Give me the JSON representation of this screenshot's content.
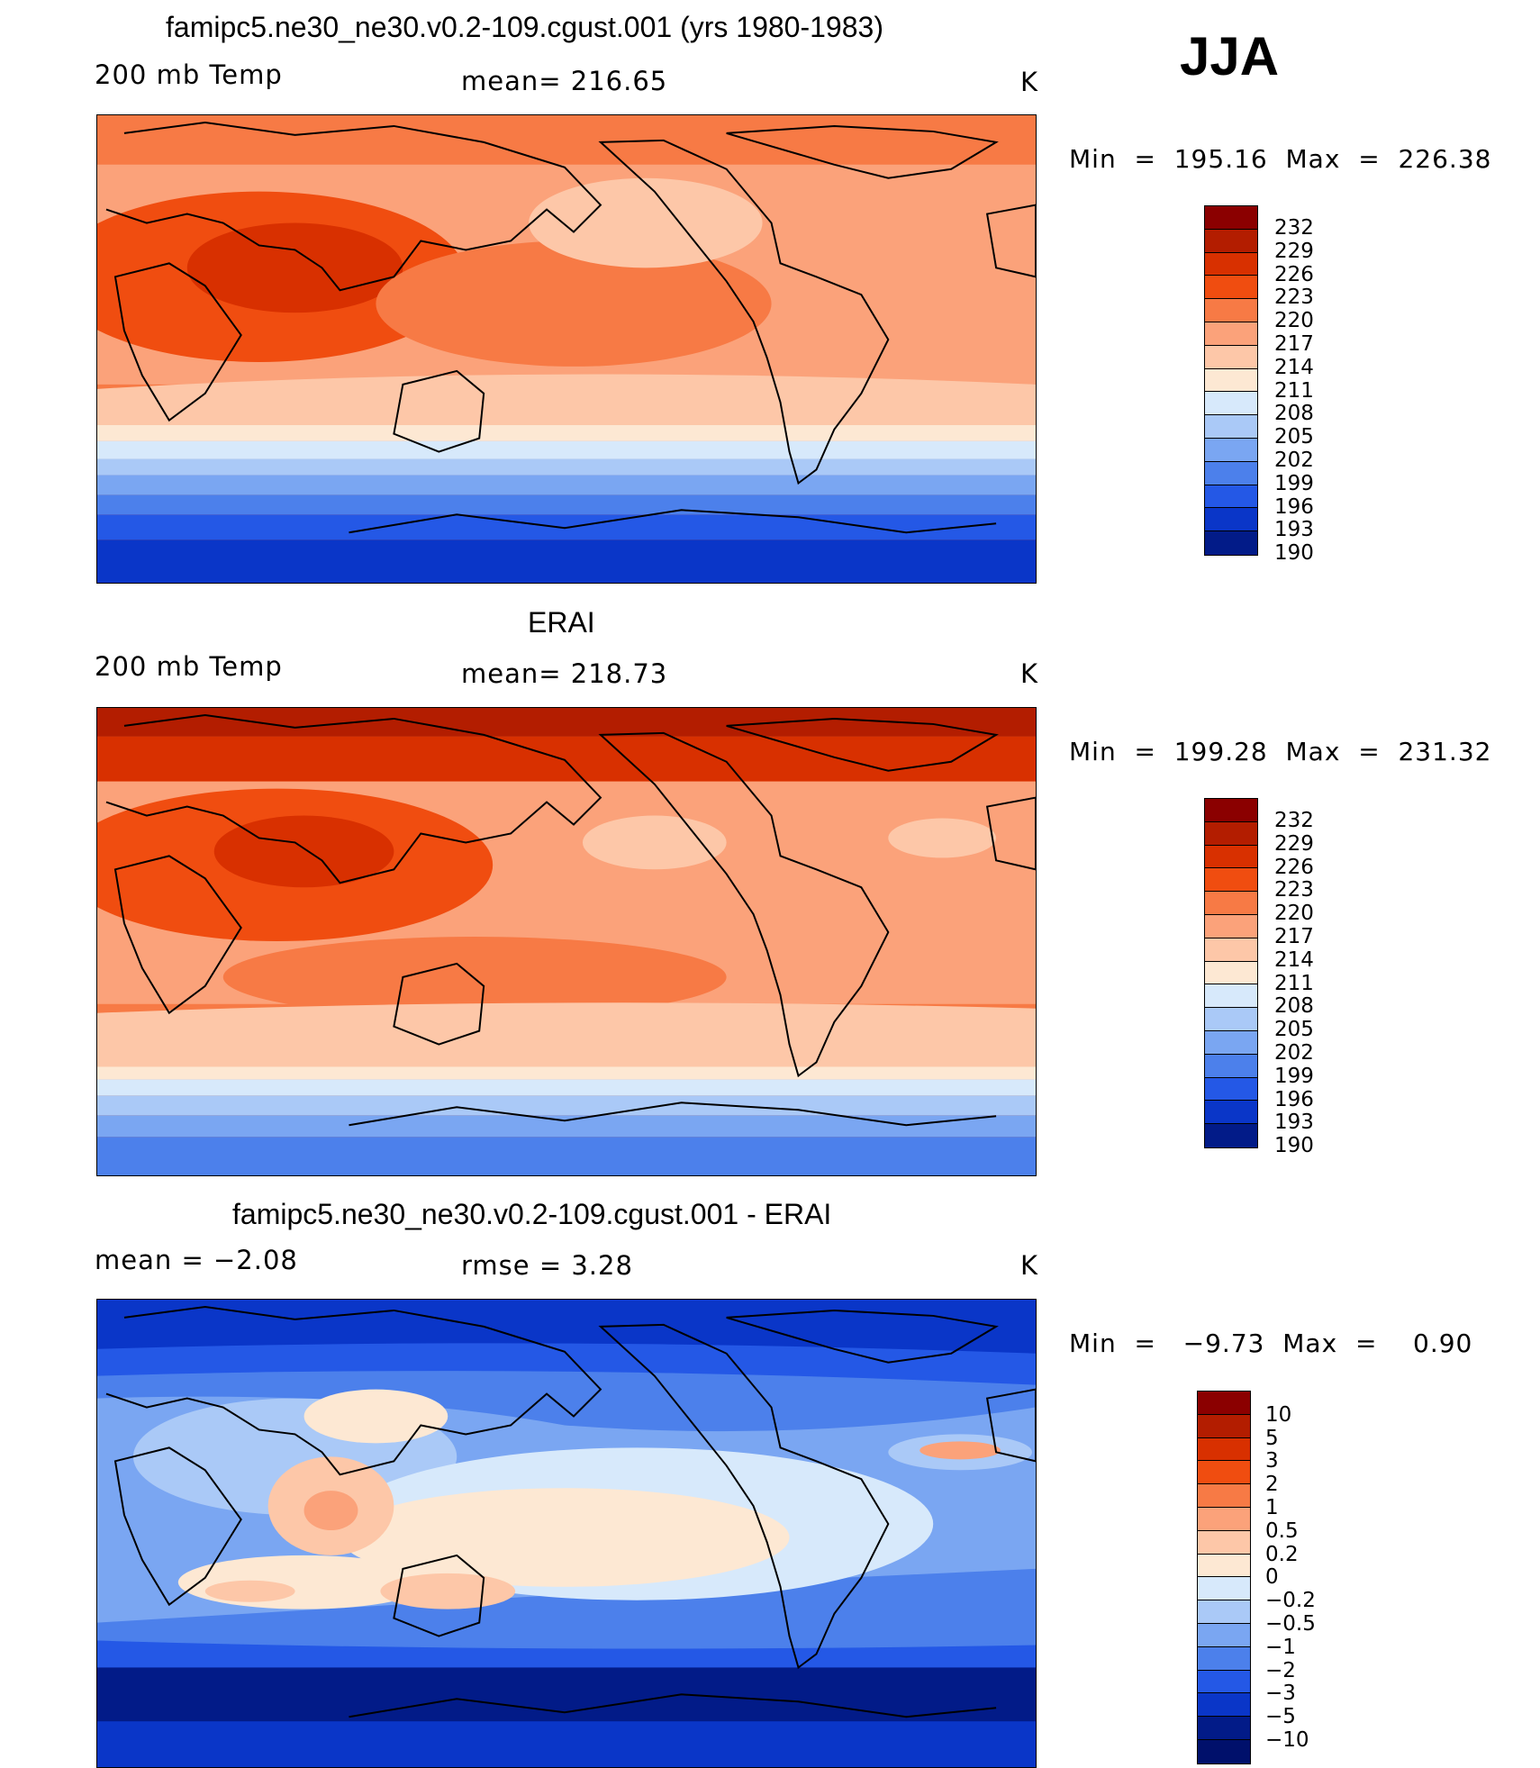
{
  "season": "JJA",
  "panels": [
    {
      "id": "model",
      "title": "famipc5.ne30_ne30.v0.2-109.cgust.001 (yrs 1980-1983)",
      "left_label": "200 mb Temp",
      "center_label": "mean=  216.65",
      "unit": "K",
      "min_max": "Min  =  195.16  Max  =  226.38",
      "colorbar": {
        "labels": [
          "232",
          "229",
          "226",
          "223",
          "220",
          "217",
          "214",
          "211",
          "208",
          "205",
          "202",
          "199",
          "196",
          "193",
          "190"
        ],
        "colors": [
          "#8b0000",
          "#b31d00",
          "#d83000",
          "#f04d10",
          "#f77a45",
          "#fba27a",
          "#fdc7a8",
          "#fde8d3",
          "#d7e9fb",
          "#aac9f7",
          "#7aa6f2",
          "#4c80eb",
          "#2458e6",
          "#0a36c8",
          "#021b88"
        ]
      }
    },
    {
      "id": "obs",
      "title": "ERAI",
      "left_label": "200 mb Temp",
      "center_label": "mean=  218.73",
      "unit": "K",
      "min_max": "Min  =  199.28  Max  =  231.32",
      "colorbar": {
        "labels": [
          "232",
          "229",
          "226",
          "223",
          "220",
          "217",
          "214",
          "211",
          "208",
          "205",
          "202",
          "199",
          "196",
          "193",
          "190"
        ],
        "colors": [
          "#8b0000",
          "#b31d00",
          "#d83000",
          "#f04d10",
          "#f77a45",
          "#fba27a",
          "#fdc7a8",
          "#fde8d3",
          "#d7e9fb",
          "#aac9f7",
          "#7aa6f2",
          "#4c80eb",
          "#2458e6",
          "#0a36c8",
          "#021b88"
        ]
      }
    },
    {
      "id": "diff",
      "title": "famipc5.ne30_ne30.v0.2-109.cgust.001 - ERAI",
      "left_label": "mean =   −2.08",
      "center_label": "rmse =    3.28",
      "unit": "K",
      "min_max": "Min  =   −9.73  Max  =    0.90",
      "colorbar": {
        "labels": [
          "10",
          "5",
          "3",
          "2",
          "1",
          "0.5",
          "0.2",
          "0",
          "−0.2",
          "−0.5",
          "−1",
          "−2",
          "−3",
          "−5",
          "−10"
        ],
        "colors": [
          "#8b0000",
          "#b31d00",
          "#d83000",
          "#f04d10",
          "#f77a45",
          "#fba27a",
          "#fdc7a8",
          "#fde8d3",
          "#d7e9fb",
          "#aac9f7",
          "#7aa6f2",
          "#4c80eb",
          "#2458e6",
          "#0a36c8",
          "#021b88",
          "#00106b"
        ]
      }
    }
  ]
}
